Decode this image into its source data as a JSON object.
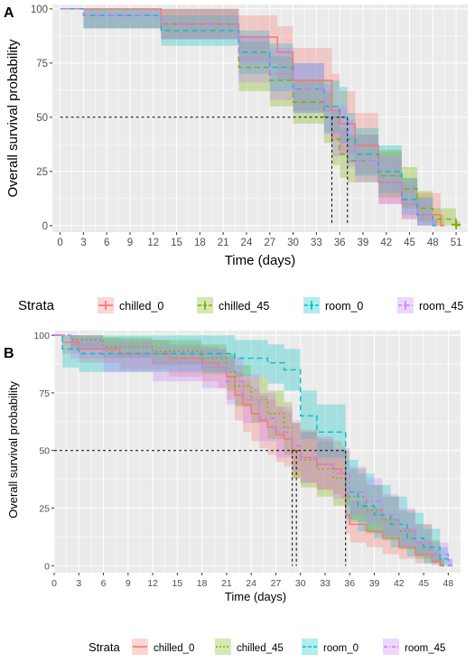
{
  "colors": {
    "chilled_0": "#F8766D",
    "chilled_45": "#7CAE00",
    "room_0": "#00BFC4",
    "room_45": "#C77CFF",
    "panel_bg": "#EBEBEB",
    "grid": "#FFFFFF"
  },
  "chart_data": [
    {
      "panel": "A",
      "type": "line",
      "xlabel": "Time (days)",
      "ylabel": "Overall survival probability",
      "xlim": [
        -1,
        52.5
      ],
      "ylim": [
        -3,
        102
      ],
      "xticks": [
        0,
        3,
        6,
        9,
        12,
        15,
        18,
        21,
        24,
        27,
        30,
        33,
        36,
        39,
        42,
        45,
        48,
        51
      ],
      "yticks": [
        0,
        25,
        50,
        75,
        100
      ],
      "grid": true,
      "legend": {
        "position": "bottom",
        "title": "Strata",
        "entries": [
          "chilled_0",
          "chilled_45",
          "room_0",
          "room_45"
        ]
      },
      "median_lines": {
        "y": 50,
        "x": [
          35,
          37
        ]
      },
      "series": [
        {
          "name": "chilled_0",
          "style": "solid",
          "x": [
            0,
            13,
            23,
            28,
            30,
            35,
            36,
            38,
            41,
            44,
            46,
            49
          ],
          "y": [
            100,
            93,
            87,
            80,
            67,
            53,
            47,
            37,
            20,
            10,
            5,
            0
          ],
          "lower": [
            100,
            86,
            75,
            67,
            53,
            39,
            33,
            24,
            10,
            3,
            0,
            0
          ],
          "upper": [
            100,
            100,
            97,
            92,
            82,
            70,
            62,
            52,
            34,
            22,
            15,
            5
          ]
        },
        {
          "name": "chilled_45",
          "style": "dashed",
          "x": [
            0,
            3,
            13,
            23,
            27,
            30,
            34,
            35,
            36,
            37,
            41,
            44,
            46,
            48,
            51
          ],
          "y": [
            100,
            97,
            93,
            73,
            67,
            57,
            50,
            40,
            33,
            30,
            23,
            17,
            8,
            3,
            0
          ],
          "lower": [
            100,
            91,
            86,
            62,
            55,
            47,
            38,
            28,
            22,
            20,
            13,
            8,
            2,
            0,
            0
          ],
          "upper": [
            100,
            100,
            100,
            85,
            78,
            67,
            62,
            53,
            45,
            42,
            35,
            27,
            16,
            8,
            2
          ]
        },
        {
          "name": "room_0",
          "style": "dashed",
          "x": [
            0,
            3,
            13,
            23,
            27,
            30,
            34,
            36,
            37,
            38,
            41,
            44,
            46,
            48
          ],
          "y": [
            100,
            97,
            90,
            80,
            73,
            63,
            55,
            50,
            40,
            33,
            25,
            12,
            5,
            0
          ],
          "lower": [
            100,
            91,
            83,
            70,
            62,
            52,
            43,
            38,
            29,
            23,
            15,
            5,
            0,
            0
          ],
          "upper": [
            100,
            100,
            97,
            90,
            84,
            75,
            67,
            64,
            52,
            45,
            37,
            22,
            13,
            3
          ]
        },
        {
          "name": "room_45",
          "style": "dashdot",
          "x": [
            0,
            3,
            13,
            23,
            27,
            30,
            34,
            35,
            37,
            38,
            41,
            44,
            46,
            48
          ],
          "y": [
            100,
            97,
            93,
            77,
            70,
            63,
            53,
            43,
            37,
            30,
            20,
            10,
            5,
            0
          ],
          "lower": [
            100,
            91,
            86,
            66,
            58,
            52,
            42,
            32,
            27,
            20,
            10,
            3,
            0,
            0
          ],
          "upper": [
            100,
            100,
            100,
            88,
            82,
            75,
            65,
            55,
            49,
            42,
            32,
            20,
            13,
            3
          ]
        }
      ]
    },
    {
      "panel": "B",
      "type": "line",
      "xlabel": "Time (days)",
      "ylabel": "Overall survival probability",
      "xlim": [
        0,
        49.5
      ],
      "ylim": [
        -3,
        102
      ],
      "xticks": [
        0,
        3,
        6,
        9,
        12,
        15,
        18,
        21,
        24,
        27,
        30,
        33,
        36,
        39,
        42,
        45,
        48
      ],
      "yticks": [
        0,
        25,
        50,
        75,
        100
      ],
      "grid": true,
      "legend": {
        "position": "bottom",
        "title": "Strata",
        "entries": [
          "chilled_0",
          "chilled_45",
          "room_0",
          "room_45"
        ]
      },
      "median_lines": {
        "y": 50,
        "x": [
          29,
          29.5,
          35.5
        ]
      },
      "series": [
        {
          "name": "chilled_0",
          "style": "solid",
          "x": [
            0,
            1,
            3,
            8,
            14,
            18,
            20,
            21,
            22,
            23,
            24,
            25,
            26,
            27,
            28,
            29,
            30,
            32,
            34,
            35,
            35.5,
            36,
            38,
            40,
            42,
            44,
            46,
            47
          ],
          "y": [
            100,
            97,
            94,
            92,
            90,
            88,
            86,
            82,
            74,
            70,
            66,
            63,
            60,
            57,
            55,
            50,
            47,
            44,
            42,
            40,
            22,
            18,
            15,
            12,
            8,
            5,
            2,
            0
          ],
          "lower": [
            100,
            92,
            88,
            85,
            82,
            80,
            77,
            72,
            63,
            58,
            54,
            51,
            48,
            45,
            43,
            38,
            36,
            33,
            31,
            29,
            14,
            10,
            8,
            5,
            3,
            1,
            0,
            0
          ],
          "upper": [
            100,
            100,
            99,
            98,
            96,
            95,
            94,
            91,
            84,
            81,
            77,
            74,
            72,
            69,
            67,
            62,
            59,
            56,
            54,
            52,
            32,
            28,
            25,
            21,
            16,
            11,
            7,
            3
          ]
        },
        {
          "name": "chilled_45",
          "style": "dotted",
          "x": [
            0,
            2,
            6,
            12,
            18,
            21,
            22,
            24,
            26,
            28,
            29,
            30,
            32,
            34,
            36,
            38,
            40,
            42,
            44,
            46,
            47
          ],
          "y": [
            100,
            98,
            95,
            93,
            90,
            84,
            78,
            72,
            66,
            60,
            50,
            46,
            42,
            38,
            30,
            24,
            20,
            15,
            10,
            5,
            0
          ],
          "lower": [
            100,
            94,
            90,
            87,
            83,
            76,
            69,
            62,
            55,
            48,
            38,
            34,
            30,
            26,
            19,
            14,
            11,
            7,
            3,
            1,
            0
          ],
          "upper": [
            100,
            100,
            99,
            98,
            96,
            92,
            87,
            82,
            76,
            71,
            62,
            58,
            54,
            50,
            42,
            35,
            30,
            24,
            18,
            11,
            3
          ]
        },
        {
          "name": "room_0",
          "style": "dashed",
          "x": [
            0,
            1,
            3,
            12,
            22,
            26,
            28,
            30,
            32,
            35,
            35.5,
            37,
            39,
            41,
            43,
            45,
            47,
            48
          ],
          "y": [
            100,
            94,
            92,
            92,
            90,
            88,
            85,
            65,
            58,
            58,
            32,
            26,
            22,
            18,
            12,
            8,
            3,
            0
          ],
          "lower": [
            100,
            86,
            84,
            84,
            82,
            79,
            76,
            55,
            47,
            47,
            20,
            15,
            12,
            8,
            4,
            1,
            0,
            0
          ],
          "upper": [
            100,
            100,
            100,
            100,
            98,
            96,
            94,
            76,
            70,
            70,
            46,
            40,
            35,
            30,
            23,
            16,
            8,
            3
          ]
        },
        {
          "name": "room_45",
          "style": "dashdot",
          "x": [
            0,
            2,
            6,
            12,
            18,
            21,
            23,
            25,
            27,
            29,
            30,
            32,
            34,
            36,
            38,
            40,
            42,
            44,
            46,
            48
          ],
          "y": [
            100,
            96,
            91,
            88,
            86,
            80,
            72,
            64,
            58,
            52,
            47,
            44,
            40,
            32,
            28,
            22,
            16,
            10,
            5,
            0
          ],
          "lower": [
            100,
            90,
            84,
            80,
            77,
            70,
            62,
            54,
            47,
            41,
            36,
            33,
            29,
            22,
            18,
            13,
            8,
            4,
            1,
            0
          ],
          "upper": [
            100,
            100,
            97,
            95,
            94,
            90,
            83,
            75,
            69,
            63,
            58,
            55,
            51,
            43,
            38,
            31,
            25,
            18,
            10,
            3
          ]
        }
      ]
    }
  ]
}
